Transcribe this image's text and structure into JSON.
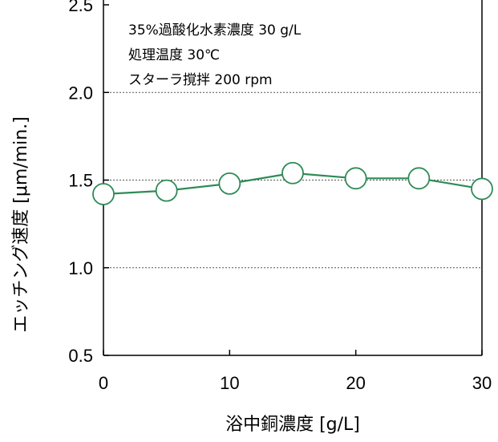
{
  "chart_data": {
    "type": "line",
    "title": "",
    "xlabel": "浴中銅濃度 [g/L]",
    "ylabel": "エッチング速度 [μm/min.]",
    "xlim": [
      0,
      30
    ],
    "ylim": [
      0.5,
      2.5
    ],
    "x_ticks": [
      0,
      10,
      20,
      30
    ],
    "y_ticks": [
      0.5,
      1.0,
      1.5,
      2.0,
      2.5
    ],
    "x_tick_labels": [
      "0",
      "10",
      "20",
      "30"
    ],
    "y_tick_labels": [
      "0.5",
      "1.0",
      "1.5",
      "2.0",
      "2.5"
    ],
    "grid": "horizontal dotted",
    "annotations": [
      "35%過酸化水素濃度 30 g/L",
      "処理温度 30℃",
      "スターラ撹拌 200 rpm"
    ],
    "series": [
      {
        "x": [
          0,
          5,
          10,
          15,
          20,
          25,
          30
        ],
        "y": [
          1.42,
          1.44,
          1.48,
          1.54,
          1.51,
          1.51,
          1.45
        ],
        "color": "#2e8b57",
        "marker": "open-circle"
      }
    ]
  }
}
